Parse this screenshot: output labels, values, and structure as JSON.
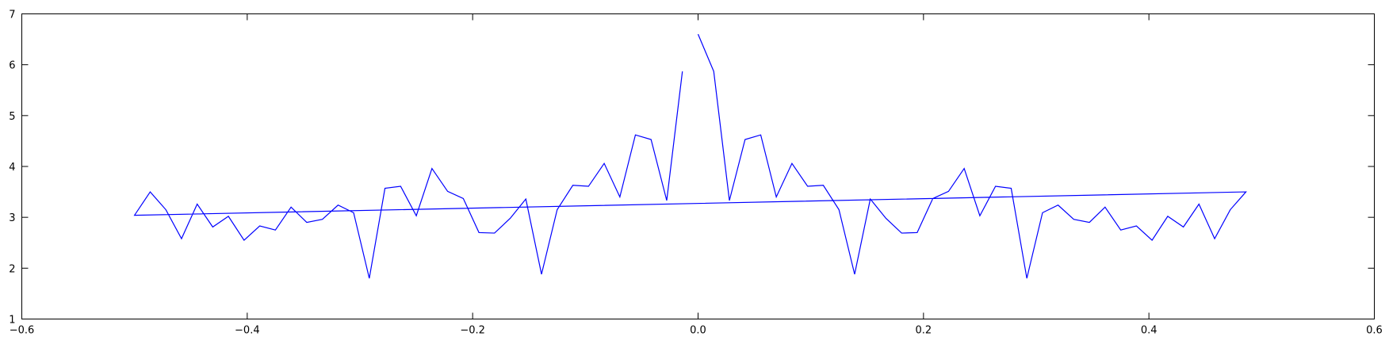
{
  "chart_data": {
    "type": "line",
    "title": "",
    "xlabel": "",
    "ylabel": "",
    "xlim": [
      -0.6,
      0.6
    ],
    "ylim": [
      1,
      7
    ],
    "xticks": [
      -0.6,
      -0.4,
      -0.2,
      0.0,
      0.2,
      0.4,
      0.6
    ],
    "yticks": [
      1,
      2,
      3,
      4,
      5,
      6,
      7
    ],
    "xtick_labels": [
      "−0.6",
      "−0.4",
      "−0.2",
      "0.0",
      "0.2",
      "0.4",
      "0.6"
    ],
    "ytick_labels": [
      "1",
      "2",
      "3",
      "4",
      "5",
      "6",
      "7"
    ],
    "grid": false,
    "legend": "none",
    "series": [
      {
        "color": "#0000ff",
        "x": [
          0.0,
          0.0139,
          0.0278,
          0.0417,
          0.0556,
          0.0694,
          0.0833,
          0.0972,
          0.1111,
          0.125,
          0.1389,
          0.1528,
          0.1667,
          0.1806,
          0.1944,
          0.2083,
          0.2222,
          0.2361,
          0.25,
          0.2639,
          0.2778,
          0.2917,
          0.3056,
          0.3194,
          0.3333,
          0.3472,
          0.3611,
          0.375,
          0.3889,
          0.4028,
          0.4167,
          0.4306,
          0.4444,
          0.4583,
          0.4722,
          0.4861,
          -0.5,
          -0.4861,
          -0.4722,
          -0.4583,
          -0.4444,
          -0.4306,
          -0.4167,
          -0.4028,
          -0.3889,
          -0.375,
          -0.3611,
          -0.3472,
          -0.3333,
          -0.3194,
          -0.3056,
          -0.2917,
          -0.2778,
          -0.2639,
          -0.25,
          -0.2361,
          -0.2222,
          -0.2083,
          -0.1944,
          -0.1806,
          -0.1667,
          -0.1528,
          -0.1389,
          -0.125,
          -0.1111,
          -0.0972,
          -0.0833,
          -0.0694,
          -0.0556,
          -0.0417,
          -0.0278,
          -0.0139
        ],
        "y": [
          6.6,
          5.87,
          3.33,
          4.53,
          4.62,
          3.4,
          4.06,
          3.61,
          3.63,
          3.15,
          1.88,
          3.36,
          2.98,
          2.69,
          2.7,
          3.37,
          3.51,
          3.96,
          3.03,
          3.61,
          3.57,
          1.8,
          3.09,
          3.24,
          2.96,
          2.9,
          3.2,
          2.75,
          2.83,
          2.55,
          3.02,
          2.81,
          3.26,
          2.58,
          3.15,
          3.5,
          3.04,
          3.5,
          3.15,
          2.58,
          3.26,
          2.81,
          3.02,
          2.55,
          2.83,
          2.75,
          3.2,
          2.9,
          2.96,
          3.24,
          3.09,
          1.8,
          3.57,
          3.61,
          3.03,
          3.96,
          3.51,
          3.37,
          2.7,
          2.69,
          2.98,
          3.36,
          1.88,
          3.15,
          3.63,
          3.61,
          4.06,
          3.4,
          4.62,
          4.53,
          3.33,
          5.87
        ]
      }
    ]
  }
}
